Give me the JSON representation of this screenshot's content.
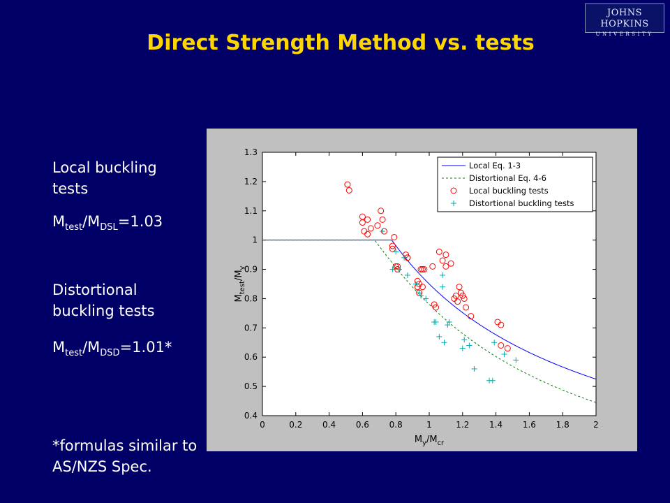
{
  "logo": {
    "line1": "JOHNS HOPKINS",
    "line2": "UNIVERSITY"
  },
  "slide": {
    "title": "Direct Strength Method vs. tests",
    "local": {
      "heading": "Local buckling tests",
      "ratio_prefix": "M",
      "ratio_sub1": "test",
      "ratio_mid": "/M",
      "ratio_sub2": "DSL",
      "ratio_value": "=1.03"
    },
    "distortional": {
      "heading": "Distortional buckling tests",
      "ratio_prefix": "M",
      "ratio_sub1": "test",
      "ratio_mid": "/M",
      "ratio_sub2": "DSD",
      "ratio_value": "=1.01*"
    },
    "footnote": "*formulas similar to AS/NZS Spec."
  },
  "chart_data": {
    "type": "scatter",
    "xlabel": "My/Mcr",
    "ylabel": "Mtest/My",
    "xlim": [
      0,
      2
    ],
    "ylim": [
      0.4,
      1.3
    ],
    "xticks": [
      "0",
      "0.2",
      "0.4",
      "0.6",
      "0.8",
      "1",
      "1.2",
      "1.4",
      "1.6",
      "1.8",
      "2"
    ],
    "yticks": [
      "0.4",
      "0.5",
      "0.6",
      "0.7",
      "0.8",
      "0.9",
      "1",
      "1.1",
      "1.2",
      "1.3"
    ],
    "grid": false,
    "legend_position": "top-right",
    "series": [
      {
        "name": "Local Eq. 1-3",
        "kind": "line",
        "style": "solid",
        "color": "#0000ff",
        "formula": "local",
        "x": [
          0,
          0.776,
          0.8,
          0.9,
          1.0,
          1.1,
          1.2,
          1.3,
          1.4,
          1.5,
          1.6,
          1.7,
          1.8,
          1.9,
          2.0
        ],
        "y": [
          1,
          1,
          0.98,
          0.91,
          0.85,
          0.8,
          0.76,
          0.72,
          0.69,
          0.66,
          0.63,
          0.6,
          0.58,
          0.55,
          0.53
        ]
      },
      {
        "name": "Distortional Eq. 4-6",
        "kind": "line",
        "style": "dashed",
        "color": "#008000",
        "formula": "distortional",
        "x": [
          0,
          0.673,
          0.7,
          0.8,
          0.9,
          1.0,
          1.1,
          1.2,
          1.3,
          1.4,
          1.5,
          1.6,
          1.7,
          1.8,
          1.9,
          2.0
        ],
        "y": [
          1,
          1,
          0.98,
          0.92,
          0.86,
          0.8,
          0.75,
          0.71,
          0.67,
          0.63,
          0.6,
          0.56,
          0.53,
          0.51,
          0.48,
          0.45
        ]
      },
      {
        "name": "Local buckling tests",
        "kind": "marker",
        "marker": "circle",
        "color": "#ff0000",
        "points": [
          [
            0.51,
            1.19
          ],
          [
            0.52,
            1.17
          ],
          [
            0.6,
            1.08
          ],
          [
            0.6,
            1.06
          ],
          [
            0.61,
            1.03
          ],
          [
            0.63,
            1.07
          ],
          [
            0.63,
            1.02
          ],
          [
            0.65,
            1.04
          ],
          [
            0.69,
            1.05
          ],
          [
            0.71,
            1.1
          ],
          [
            0.72,
            1.07
          ],
          [
            0.73,
            1.03
          ],
          [
            0.78,
            0.97
          ],
          [
            0.78,
            0.98
          ],
          [
            0.79,
            1.01
          ],
          [
            0.8,
            0.91
          ],
          [
            0.81,
            0.9
          ],
          [
            0.81,
            0.91
          ],
          [
            0.86,
            0.95
          ],
          [
            0.87,
            0.94
          ],
          [
            0.87,
            0.94
          ],
          [
            0.93,
            0.86
          ],
          [
            0.93,
            0.84
          ],
          [
            0.94,
            0.85
          ],
          [
            0.94,
            0.82
          ],
          [
            0.95,
            0.9
          ],
          [
            0.96,
            0.84
          ],
          [
            0.96,
            0.9
          ],
          [
            0.97,
            0.9
          ],
          [
            1.02,
            0.91
          ],
          [
            1.03,
            0.78
          ],
          [
            1.04,
            0.77
          ],
          [
            1.06,
            0.96
          ],
          [
            1.08,
            0.93
          ],
          [
            1.1,
            0.95
          ],
          [
            1.1,
            0.91
          ],
          [
            1.13,
            0.92
          ],
          [
            1.15,
            0.8
          ],
          [
            1.16,
            0.81
          ],
          [
            1.17,
            0.79
          ],
          [
            1.18,
            0.84
          ],
          [
            1.19,
            0.82
          ],
          [
            1.2,
            0.81
          ],
          [
            1.21,
            0.8
          ],
          [
            1.22,
            0.77
          ],
          [
            1.25,
            0.74
          ],
          [
            1.41,
            0.72
          ],
          [
            1.43,
            0.64
          ],
          [
            1.43,
            0.71
          ],
          [
            1.47,
            0.63
          ]
        ]
      },
      {
        "name": "Distortional buckling tests",
        "kind": "marker",
        "marker": "plus",
        "color": "#00aaaa",
        "points": [
          [
            0.72,
            1.03
          ],
          [
            0.78,
            0.9
          ],
          [
            0.8,
            0.96
          ],
          [
            0.82,
            0.9
          ],
          [
            0.85,
            0.94
          ],
          [
            0.87,
            0.88
          ],
          [
            0.92,
            0.85
          ],
          [
            0.94,
            0.82
          ],
          [
            0.95,
            0.81
          ],
          [
            0.98,
            0.8
          ],
          [
            1.03,
            0.72
          ],
          [
            1.04,
            0.72
          ],
          [
            1.06,
            0.67
          ],
          [
            1.08,
            0.88
          ],
          [
            1.08,
            0.84
          ],
          [
            1.09,
            0.65
          ],
          [
            1.11,
            0.71
          ],
          [
            1.12,
            0.72
          ],
          [
            1.2,
            0.63
          ],
          [
            1.21,
            0.66
          ],
          [
            1.24,
            0.64
          ],
          [
            1.27,
            0.56
          ],
          [
            1.36,
            0.52
          ],
          [
            1.38,
            0.52
          ],
          [
            1.39,
            0.65
          ],
          [
            1.45,
            0.61
          ],
          [
            1.52,
            0.59
          ]
        ]
      }
    ]
  }
}
